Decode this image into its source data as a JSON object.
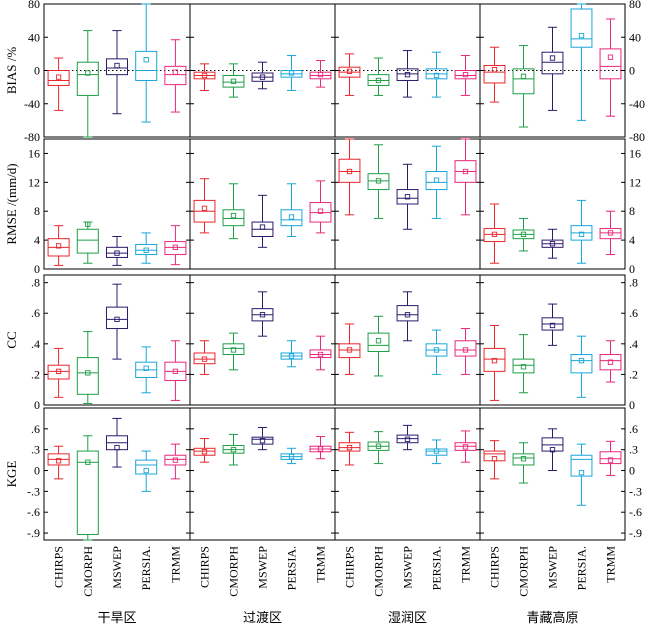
{
  "chart_data": {
    "type": "boxplot",
    "title": "",
    "products": [
      "CHIRPS",
      "CMORPH",
      "MSWEP",
      "PERSIA.",
      "TRMM"
    ],
    "product_colors": [
      "#e8262b",
      "#1e9e47",
      "#2c1a6b",
      "#19a6d9",
      "#e8287a"
    ],
    "regions": [
      "干旱区",
      "过渡区",
      "湿润区",
      "青藏高原"
    ],
    "metrics": [
      {
        "key": "bias",
        "label": "BIAS /%",
        "ylim": [
          -80,
          80
        ],
        "ticks": [
          -80,
          -40,
          0,
          40,
          80
        ],
        "ref_line": 0,
        "data": [
          [
            {
              "min": -48,
              "q1": -18,
              "median": -12,
              "q3": 0,
              "max": 15,
              "mean": -8
            },
            {
              "min": -80,
              "q1": -30,
              "median": -5,
              "q3": 10,
              "max": 48,
              "mean": -3
            },
            {
              "min": -52,
              "q1": -5,
              "median": 3,
              "q3": 14,
              "max": 48,
              "mean": 6
            },
            {
              "min": -62,
              "q1": -12,
              "median": 0,
              "q3": 23,
              "max": 80,
              "mean": 13
            },
            {
              "min": -50,
              "q1": -17,
              "median": -5,
              "q3": 5,
              "max": 37,
              "mean": -2
            }
          ],
          [
            {
              "min": -24,
              "q1": -10,
              "median": -6,
              "q3": -2,
              "max": 8,
              "mean": -6
            },
            {
              "min": -32,
              "q1": -20,
              "median": -14,
              "q3": -6,
              "max": 8,
              "mean": -13
            },
            {
              "min": -22,
              "q1": -13,
              "median": -8,
              "q3": -3,
              "max": 10,
              "mean": -8
            },
            {
              "min": -24,
              "q1": -8,
              "median": -4,
              "q3": 0,
              "max": 18,
              "mean": -3
            },
            {
              "min": -20,
              "q1": -10,
              "median": -6,
              "q3": -2,
              "max": 12,
              "mean": -5
            }
          ],
          [
            {
              "min": -30,
              "q1": -8,
              "median": -2,
              "q3": 4,
              "max": 20,
              "mean": -1
            },
            {
              "min": -30,
              "q1": -18,
              "median": -12,
              "q3": -5,
              "max": 15,
              "mean": -12
            },
            {
              "min": -32,
              "q1": -12,
              "median": -4,
              "q3": 2,
              "max": 24,
              "mean": -5
            },
            {
              "min": -32,
              "q1": -10,
              "median": -4,
              "q3": 2,
              "max": 22,
              "mean": -6
            },
            {
              "min": -30,
              "q1": -10,
              "median": -6,
              "q3": 0,
              "max": 18,
              "mean": -5
            }
          ],
          [
            {
              "min": -38,
              "q1": -15,
              "median": -2,
              "q3": 6,
              "max": 28,
              "mean": 1
            },
            {
              "min": -68,
              "q1": -28,
              "median": -10,
              "q3": 2,
              "max": 30,
              "mean": -7
            },
            {
              "min": -48,
              "q1": -4,
              "median": 10,
              "q3": 22,
              "max": 52,
              "mean": 15
            },
            {
              "min": -60,
              "q1": 28,
              "median": 38,
              "q3": 74,
              "max": 80,
              "mean": 42
            },
            {
              "min": -55,
              "q1": -10,
              "median": 5,
              "q3": 26,
              "max": 62,
              "mean": 16
            }
          ]
        ]
      },
      {
        "key": "rmse",
        "label": "RMSE /(mm/d)",
        "ylim": [
          0,
          18
        ],
        "ticks": [
          0,
          4,
          8,
          12,
          16
        ],
        "ref_line": null,
        "data": [
          [
            {
              "min": 0.5,
              "q1": 1.8,
              "median": 3.0,
              "q3": 4.2,
              "max": 6.0,
              "mean": 3.2
            },
            {
              "min": 0.8,
              "q1": 2.2,
              "median": 4.0,
              "q3": 5.5,
              "max": 6.5,
              "mean": 6.2
            },
            {
              "min": 0.5,
              "q1": 1.6,
              "median": 2.2,
              "q3": 3.0,
              "max": 4.5,
              "mean": 2.2
            },
            {
              "min": 0.8,
              "q1": 2.0,
              "median": 2.6,
              "q3": 3.4,
              "max": 5.0,
              "mean": 2.6
            },
            {
              "min": 0.6,
              "q1": 2.0,
              "median": 3.0,
              "q3": 3.8,
              "max": 6.0,
              "mean": 3.0
            }
          ],
          [
            {
              "min": 5.0,
              "q1": 6.5,
              "median": 8.0,
              "q3": 9.5,
              "max": 12.5,
              "mean": 8.4
            },
            {
              "min": 4.2,
              "q1": 6.0,
              "median": 7.0,
              "q3": 8.2,
              "max": 11.8,
              "mean": 7.4
            },
            {
              "min": 3.0,
              "q1": 4.5,
              "median": 5.5,
              "q3": 6.5,
              "max": 10.2,
              "mean": 5.8
            },
            {
              "min": 4.5,
              "q1": 6.0,
              "median": 6.8,
              "q3": 8.2,
              "max": 11.8,
              "mean": 7.2
            },
            {
              "min": 5.0,
              "q1": 6.5,
              "median": 7.8,
              "q3": 9.2,
              "max": 12.2,
              "mean": 8.0
            }
          ],
          [
            {
              "min": 7.5,
              "q1": 12.0,
              "median": 13.5,
              "q3": 15.2,
              "max": 18.0,
              "mean": 13.5
            },
            {
              "min": 7.0,
              "q1": 11.0,
              "median": 12.2,
              "q3": 13.2,
              "max": 17.2,
              "mean": 12.2
            },
            {
              "min": 5.5,
              "q1": 9.0,
              "median": 9.8,
              "q3": 11.0,
              "max": 14.5,
              "mean": 10.0
            },
            {
              "min": 7.0,
              "q1": 11.0,
              "median": 12.0,
              "q3": 13.5,
              "max": 17.0,
              "mean": 12.3
            },
            {
              "min": 7.5,
              "q1": 12.0,
              "median": 13.5,
              "q3": 15.0,
              "max": 18.0,
              "mean": 13.5
            }
          ],
          [
            {
              "min": 0.8,
              "q1": 3.8,
              "median": 4.8,
              "q3": 5.6,
              "max": 9.0,
              "mean": 4.8
            },
            {
              "min": 2.5,
              "q1": 4.2,
              "median": 4.8,
              "q3": 5.4,
              "max": 7.0,
              "mean": 4.8
            },
            {
              "min": 1.5,
              "q1": 3.0,
              "median": 3.5,
              "q3": 4.0,
              "max": 5.5,
              "mean": 3.5
            },
            {
              "min": 0.8,
              "q1": 4.0,
              "median": 5.0,
              "q3": 6.0,
              "max": 9.5,
              "mean": 4.8
            },
            {
              "min": 2.0,
              "q1": 4.2,
              "median": 5.0,
              "q3": 5.6,
              "max": 8.0,
              "mean": 5.0
            }
          ]
        ]
      },
      {
        "key": "cc",
        "label": "CC",
        "ylim": [
          0,
          0.85
        ],
        "ticks": [
          0,
          0.2,
          0.4,
          0.6,
          0.8
        ],
        "ref_line": null,
        "data": [
          [
            {
              "min": 0.05,
              "q1": 0.17,
              "median": 0.22,
              "q3": 0.26,
              "max": 0.37,
              "mean": 0.22
            },
            {
              "min": 0.01,
              "q1": 0.07,
              "median": 0.21,
              "q3": 0.31,
              "max": 0.48,
              "mean": 0.21
            },
            {
              "min": 0.3,
              "q1": 0.5,
              "median": 0.56,
              "q3": 0.64,
              "max": 0.79,
              "mean": 0.56
            },
            {
              "min": 0.08,
              "q1": 0.18,
              "median": 0.23,
              "q3": 0.28,
              "max": 0.38,
              "mean": 0.24
            },
            {
              "min": 0.03,
              "q1": 0.16,
              "median": 0.22,
              "q3": 0.28,
              "max": 0.42,
              "mean": 0.22
            }
          ],
          [
            {
              "min": 0.2,
              "q1": 0.27,
              "median": 0.3,
              "q3": 0.34,
              "max": 0.42,
              "mean": 0.3
            },
            {
              "min": 0.23,
              "q1": 0.33,
              "median": 0.37,
              "q3": 0.4,
              "max": 0.47,
              "mean": 0.36
            },
            {
              "min": 0.45,
              "q1": 0.55,
              "median": 0.59,
              "q3": 0.63,
              "max": 0.74,
              "mean": 0.59
            },
            {
              "min": 0.25,
              "q1": 0.3,
              "median": 0.32,
              "q3": 0.34,
              "max": 0.42,
              "mean": 0.32
            },
            {
              "min": 0.23,
              "q1": 0.31,
              "median": 0.33,
              "q3": 0.36,
              "max": 0.45,
              "mean": 0.33
            }
          ],
          [
            {
              "min": 0.2,
              "q1": 0.31,
              "median": 0.36,
              "q3": 0.4,
              "max": 0.53,
              "mean": 0.36
            },
            {
              "min": 0.19,
              "q1": 0.35,
              "median": 0.39,
              "q3": 0.47,
              "max": 0.58,
              "mean": 0.42
            },
            {
              "min": 0.42,
              "q1": 0.55,
              "median": 0.59,
              "q3": 0.65,
              "max": 0.74,
              "mean": 0.59
            },
            {
              "min": 0.2,
              "q1": 0.32,
              "median": 0.36,
              "q3": 0.4,
              "max": 0.49,
              "mean": 0.36
            },
            {
              "min": 0.2,
              "q1": 0.32,
              "median": 0.36,
              "q3": 0.42,
              "max": 0.5,
              "mean": 0.36
            }
          ],
          [
            {
              "min": 0.03,
              "q1": 0.22,
              "median": 0.3,
              "q3": 0.37,
              "max": 0.52,
              "mean": 0.29
            },
            {
              "min": 0.08,
              "q1": 0.21,
              "median": 0.26,
              "q3": 0.3,
              "max": 0.46,
              "mean": 0.25
            },
            {
              "min": 0.39,
              "q1": 0.49,
              "median": 0.53,
              "q3": 0.57,
              "max": 0.66,
              "mean": 0.52
            },
            {
              "min": 0.05,
              "q1": 0.21,
              "median": 0.29,
              "q3": 0.33,
              "max": 0.45,
              "mean": 0.29
            },
            {
              "min": 0.15,
              "q1": 0.23,
              "median": 0.29,
              "q3": 0.33,
              "max": 0.42,
              "mean": 0.28
            }
          ]
        ]
      },
      {
        "key": "kge",
        "label": "KGE",
        "ylim": [
          -1.0,
          0.9
        ],
        "ticks": [
          -0.9,
          -0.6,
          -0.3,
          0,
          0.3,
          0.6
        ],
        "ref_line": null,
        "data": [
          [
            {
              "min": -0.12,
              "q1": 0.08,
              "median": 0.16,
              "q3": 0.24,
              "max": 0.35,
              "mean": 0.14
            },
            {
              "min": -1.0,
              "q1": -0.92,
              "median": 0.12,
              "q3": 0.28,
              "max": 0.5,
              "mean": 0.12
            },
            {
              "min": 0.05,
              "q1": 0.3,
              "median": 0.4,
              "q3": 0.5,
              "max": 0.75,
              "mean": 0.33
            },
            {
              "min": -0.3,
              "q1": -0.05,
              "median": 0.08,
              "q3": 0.15,
              "max": 0.28,
              "mean": 0.0
            },
            {
              "min": -0.12,
              "q1": 0.08,
              "median": 0.16,
              "q3": 0.22,
              "max": 0.38,
              "mean": 0.15
            }
          ],
          [
            {
              "min": 0.12,
              "q1": 0.22,
              "median": 0.28,
              "q3": 0.32,
              "max": 0.46,
              "mean": 0.27
            },
            {
              "min": 0.08,
              "q1": 0.25,
              "median": 0.3,
              "q3": 0.36,
              "max": 0.52,
              "mean": 0.3
            },
            {
              "min": 0.3,
              "q1": 0.38,
              "median": 0.45,
              "q3": 0.48,
              "max": 0.62,
              "mean": 0.43
            },
            {
              "min": 0.1,
              "q1": 0.16,
              "median": 0.2,
              "q3": 0.24,
              "max": 0.32,
              "mean": 0.2
            },
            {
              "min": 0.17,
              "q1": 0.27,
              "median": 0.31,
              "q3": 0.35,
              "max": 0.49,
              "mean": 0.31
            }
          ],
          [
            {
              "min": 0.08,
              "q1": 0.28,
              "median": 0.33,
              "q3": 0.4,
              "max": 0.55,
              "mean": 0.33
            },
            {
              "min": 0.1,
              "q1": 0.29,
              "median": 0.35,
              "q3": 0.41,
              "max": 0.56,
              "mean": 0.35
            },
            {
              "min": 0.3,
              "q1": 0.4,
              "median": 0.46,
              "q3": 0.51,
              "max": 0.65,
              "mean": 0.45
            },
            {
              "min": 0.1,
              "q1": 0.22,
              "median": 0.28,
              "q3": 0.31,
              "max": 0.44,
              "mean": 0.28
            },
            {
              "min": 0.12,
              "q1": 0.29,
              "median": 0.35,
              "q3": 0.4,
              "max": 0.57,
              "mean": 0.34
            }
          ],
          [
            {
              "min": -0.12,
              "q1": 0.14,
              "median": 0.24,
              "q3": 0.28,
              "max": 0.43,
              "mean": 0.17
            },
            {
              "min": -0.18,
              "q1": 0.08,
              "median": 0.18,
              "q3": 0.24,
              "max": 0.4,
              "mean": 0.17
            },
            {
              "min": 0.0,
              "q1": 0.28,
              "median": 0.37,
              "q3": 0.47,
              "max": 0.6,
              "mean": 0.3
            },
            {
              "min": -0.5,
              "q1": -0.08,
              "median": 0.16,
              "q3": 0.22,
              "max": 0.38,
              "mean": -0.03
            },
            {
              "min": -0.07,
              "q1": 0.1,
              "median": 0.17,
              "q3": 0.27,
              "max": 0.42,
              "mean": 0.15
            }
          ]
        ]
      }
    ]
  }
}
